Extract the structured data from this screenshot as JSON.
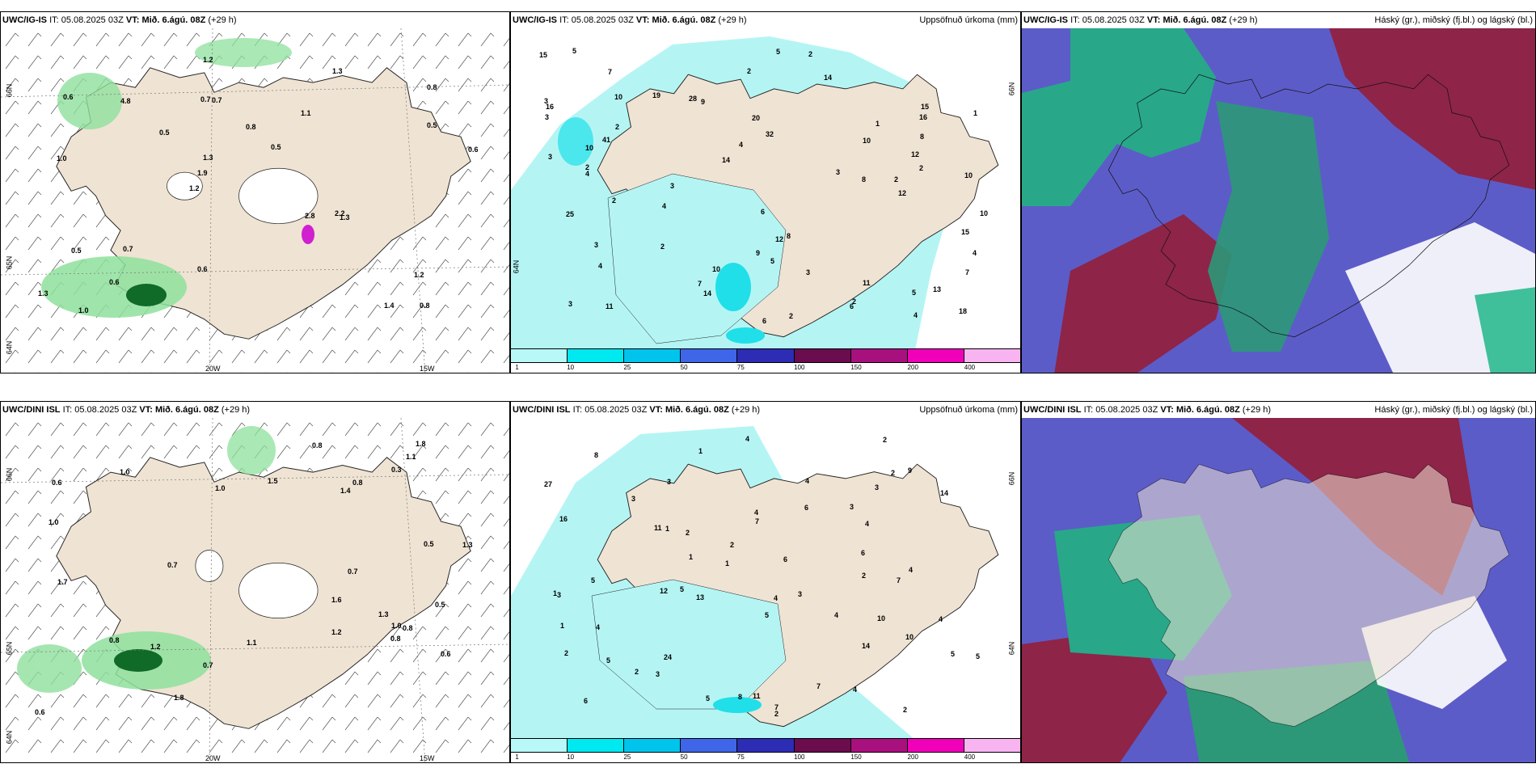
{
  "panels": {
    "p1": {
      "model": "UWC/IG-IS",
      "it_label": "IT:",
      "it": "05.08.2025 03Z",
      "vt_label": "VT:",
      "vt": "Mið. 6.ágú. 08Z",
      "lead": "(+29 h)",
      "right": "",
      "lat_labels": [
        "66N",
        "65N",
        "64N"
      ],
      "lon_labels": [
        "20W",
        "15W"
      ],
      "values": [
        "0.8",
        "1.0",
        "0.8",
        "1.2",
        "1.1",
        "1.0",
        "0.7",
        "0.8",
        "0.5",
        "0.5",
        "1.3",
        "0.6",
        "0.7",
        "0.5",
        "1.3",
        "0.6",
        "1.2",
        "0.6",
        "2.8",
        "0.5",
        "1.9",
        "0.6",
        "1.3",
        "4.8",
        "1.3",
        "0.7",
        "1.4",
        "1.2",
        "2.2"
      ]
    },
    "p2": {
      "model": "UWC/IG-IS",
      "it_label": "IT:",
      "it": "05.08.2025 03Z",
      "vt_label": "VT:",
      "vt": "Mið. 6.ágú. 08Z",
      "lead": "(+29 h)",
      "right": "Uppsöfnuð úrkoma (mm)",
      "lat_labels": [
        "66N",
        "64N"
      ],
      "values": [
        "2",
        "4",
        "2",
        "3",
        "5",
        "2",
        "8",
        "10",
        "11",
        "4",
        "3",
        "15",
        "14",
        "2",
        "3",
        "6",
        "10",
        "5",
        "3",
        "4",
        "7",
        "12",
        "16",
        "18",
        "9",
        "10",
        "12",
        "16",
        "15",
        "13",
        "28",
        "20",
        "32",
        "41",
        "8",
        "3",
        "2",
        "5",
        "11",
        "25",
        "15",
        "10",
        "12",
        "14",
        "4",
        "2",
        "3",
        "9",
        "6",
        "7",
        "10",
        "4",
        "3",
        "2",
        "8",
        "4",
        "2",
        "19",
        "14",
        "2",
        "1",
        "5",
        "3",
        "7",
        "2",
        "1",
        "10",
        "6"
      ]
    },
    "p3": {
      "model": "UWC/IG-IS",
      "it_label": "IT:",
      "it": "05.08.2025 03Z",
      "vt_label": "VT:",
      "vt": "Mið. 6.ágú. 08Z",
      "lead": "(+29 h)",
      "right": "Háský (gr.), miðský (fj.bl.) og lágský (bl.)"
    },
    "p4": {
      "model": "UWC/DINI ISL",
      "it_label": "IT:",
      "it": "05.08.2025 03Z",
      "vt_label": "VT:",
      "vt": "Mið. 6.ágú. 08Z",
      "lead": "(+29 h)",
      "right": "",
      "lat_labels": [
        "66N",
        "65N",
        "64N"
      ],
      "lon_labels": [
        "20W",
        "15W"
      ],
      "values": [
        "1.8",
        "1.1",
        "0.8",
        "1.3",
        "1.7",
        "0.6",
        "0.8",
        "1.1",
        "1.0",
        "0.5",
        "0.8",
        "0.7",
        "1.8",
        "0.7",
        "0.5",
        "0.6",
        "1.0",
        "0.6",
        "1.0",
        "1.3",
        "1.5",
        "1.6",
        "0.8",
        "1.2",
        "1.0",
        "1.4",
        "0.3",
        "0.8",
        "0.7",
        "1.2"
      ]
    },
    "p5": {
      "model": "UWC/DINI ISL",
      "it_label": "IT:",
      "it": "05.08.2025 03Z",
      "vt_label": "VT:",
      "vt": "Mið. 6.ágú. 08Z",
      "lead": "(+29 h)",
      "right": "Uppsöfnuð úrkoma (mm)",
      "lat_labels": [
        "66N",
        "64N"
      ],
      "values": [
        "6",
        "4",
        "2",
        "1",
        "3",
        "4",
        "4",
        "7",
        "11",
        "14",
        "10",
        "7",
        "6",
        "5",
        "4",
        "13",
        "2",
        "3",
        "2",
        "4",
        "5",
        "4",
        "3",
        "1",
        "6",
        "8",
        "10",
        "9",
        "7",
        "4",
        "11",
        "8",
        "12",
        "27",
        "24",
        "5",
        "3",
        "2",
        "4",
        "16",
        "14",
        "3",
        "2",
        "1",
        "2",
        "4",
        "5",
        "5",
        "4",
        "6",
        "2",
        "1",
        "3",
        "1",
        "1",
        "2",
        "7",
        "5",
        "3",
        "2",
        "5"
      ]
    },
    "p6": {
      "model": "UWC/DINI ISL",
      "it_label": "IT:",
      "it": "05.08.2025 03Z",
      "vt_label": "VT:",
      "vt": "Mið. 6.ágú. 08Z",
      "lead": "(+29 h)",
      "right": "Háský (gr.), miðský (fj.bl.) og lágský (bl.)"
    }
  },
  "colorbar": {
    "ticks": [
      "1",
      "10",
      "25",
      "50",
      "75",
      "100",
      "150",
      "200",
      "400"
    ],
    "colors": [
      "#b8f8f8",
      "#00e8f0",
      "#00c4ec",
      "#3f66e8",
      "#2c2cb4",
      "#6a0c4e",
      "#a8107e",
      "#f000b8",
      "#f8b4f0"
    ]
  },
  "colors": {
    "land": "#efe3d3",
    "precip_light": "#b4f5f4",
    "precip_mid": "#20dfe9",
    "green": "#8ee09c",
    "darkgreen": "#106a28",
    "cloud_high": "#9c3858",
    "cloud_mid": "#5c5cc8",
    "cloud_low": "#28a888",
    "sea_clear": "#ffffff"
  }
}
